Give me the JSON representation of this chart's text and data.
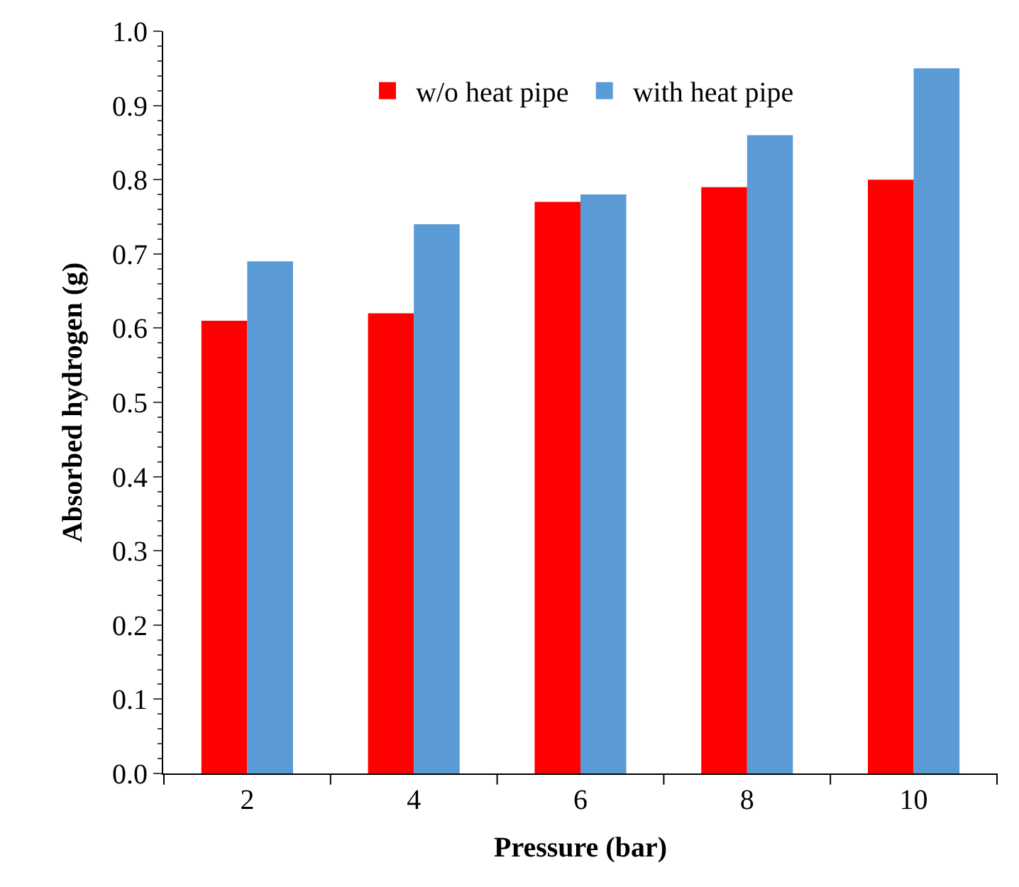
{
  "chart_data": {
    "type": "bar",
    "xlabel": "Pressure (bar)",
    "ylabel": "Absorbed hydrogen (g)",
    "categories": [
      "2",
      "4",
      "6",
      "8",
      "10"
    ],
    "series": [
      {
        "name": "w/o heat pipe",
        "color": "#ff0000",
        "values": [
          0.61,
          0.62,
          0.77,
          0.79,
          0.8
        ]
      },
      {
        "name": "with heat pipe",
        "color": "#5b9bd5",
        "values": [
          0.69,
          0.74,
          0.78,
          0.86,
          0.95
        ]
      }
    ],
    "ylim": [
      0,
      1.0
    ],
    "yticks": [
      {
        "value": 0,
        "label": "0.0"
      },
      0.1,
      0.2,
      0.3,
      0.4,
      0.5,
      0.6,
      0.7,
      0.8,
      0.9,
      {
        "value": 1,
        "label": "1.0"
      }
    ],
    "legend": "top"
  }
}
